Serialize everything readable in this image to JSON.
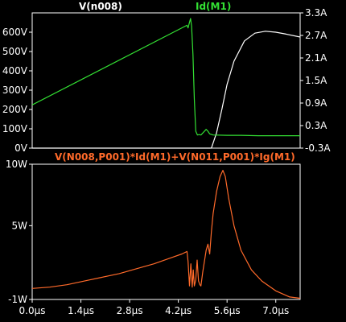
{
  "colors": {
    "background": "#000000",
    "frame": "#ffffff",
    "v_n008": "#ffffff",
    "id_m1": "#33e033",
    "power": "#ff6a2a"
  },
  "chart_data": [
    {
      "type": "line",
      "grid": false,
      "xlim": [
        0,
        7.7
      ],
      "ylim_left": [
        0,
        700
      ],
      "ylim_right": [
        -0.3,
        3.3
      ],
      "traces": [
        {
          "label": "V(n008)",
          "color": "#ffffff"
        },
        {
          "label": "Id(M1)",
          "color": "#33e033"
        }
      ],
      "left_ticks": [
        {
          "value": 600,
          "label": "600V"
        },
        {
          "value": 500,
          "label": "500V"
        },
        {
          "value": 400,
          "label": "400V"
        },
        {
          "value": 300,
          "label": "300V"
        },
        {
          "value": 200,
          "label": "200V"
        },
        {
          "value": 100,
          "label": "100V"
        },
        {
          "value": 0,
          "label": "0V"
        }
      ],
      "right_ticks": [
        {
          "value": 3.3,
          "label": "3.3A"
        },
        {
          "value": 2.7,
          "label": "2.7A"
        },
        {
          "value": 2.1,
          "label": "2.1A"
        },
        {
          "value": 1.5,
          "label": "1.5A"
        },
        {
          "value": 0.9,
          "label": "0.9A"
        },
        {
          "value": 0.3,
          "label": "0.3A"
        },
        {
          "value": -0.3,
          "label": "-0.3A"
        }
      ],
      "series": [
        {
          "name": "V(n008)",
          "axis": "left",
          "color": "#ffffff",
          "x": [
            0.0,
            4.95,
            5.15,
            5.3,
            5.45,
            5.6,
            5.8,
            6.1,
            6.4,
            6.7,
            7.0,
            7.3,
            7.7
          ],
          "y": [
            0,
            0,
            0,
            80,
            200,
            330,
            450,
            555,
            595,
            605,
            600,
            590,
            575
          ]
        },
        {
          "name": "Id(M1)",
          "axis": "right",
          "color": "#33e033",
          "x": [
            0.0,
            4.45,
            4.48,
            4.52,
            4.55,
            4.58,
            4.62,
            4.66,
            4.7,
            4.75,
            4.8,
            4.85,
            5.0,
            5.05,
            5.1,
            5.2,
            5.6,
            6.0,
            6.5,
            7.0,
            7.5,
            7.7
          ],
          "y": [
            0.85,
            2.97,
            2.9,
            3.05,
            3.15,
            2.95,
            2.2,
            1.0,
            0.15,
            0.05,
            0.06,
            0.05,
            0.2,
            0.15,
            0.08,
            0.05,
            0.04,
            0.04,
            0.03,
            0.03,
            0.03,
            0.03
          ]
        }
      ]
    },
    {
      "type": "line",
      "grid": false,
      "xlim": [
        0,
        7.7
      ],
      "ylim": [
        -1,
        10
      ],
      "y_ticks": [
        {
          "value": 10,
          "label": "10W"
        },
        {
          "value": 5,
          "label": "5W"
        },
        {
          "value": -1,
          "label": "-1W"
        }
      ],
      "x_ticks": [
        {
          "value": 0,
          "label": "0.0µs"
        },
        {
          "value": 1.4,
          "label": "1.4µs"
        },
        {
          "value": 2.8,
          "label": "2.8µs"
        },
        {
          "value": 4.2,
          "label": "4.2µs"
        },
        {
          "value": 5.6,
          "label": "5.6µs"
        },
        {
          "value": 7.0,
          "label": "7.0µs"
        }
      ],
      "traces": [
        {
          "label": "V(N008,P001)*Id(M1)+V(N011,P001)*Ig(M1)",
          "color": "#ff6a2a"
        }
      ],
      "series": [
        {
          "name": "V(N008,P001)*Id(M1)+V(N011,P001)*Ig(M1)",
          "color": "#ff6a2a",
          "x": [
            0.0,
            0.5,
            1.0,
            1.5,
            2.0,
            2.5,
            3.0,
            3.5,
            4.0,
            4.3,
            4.45,
            4.48,
            4.52,
            4.56,
            4.6,
            4.63,
            4.66,
            4.7,
            4.74,
            4.78,
            4.82,
            4.85,
            4.9,
            5.0,
            5.05,
            5.1,
            5.15,
            5.2,
            5.3,
            5.4,
            5.48,
            5.55,
            5.65,
            5.8,
            6.0,
            6.3,
            6.6,
            7.0,
            7.4,
            7.7
          ],
          "y": [
            -0.1,
            0.0,
            0.2,
            0.5,
            0.8,
            1.1,
            1.5,
            1.9,
            2.4,
            2.7,
            2.9,
            2.1,
            0.1,
            1.9,
            0.0,
            1.4,
            0.1,
            0.6,
            2.2,
            0.5,
            0.2,
            0.1,
            1.2,
            3.0,
            3.5,
            2.7,
            4.5,
            6.0,
            7.8,
            9.0,
            9.5,
            9.0,
            7.2,
            5.0,
            3.0,
            1.4,
            0.5,
            -0.3,
            -0.8,
            -0.9
          ]
        }
      ]
    }
  ]
}
